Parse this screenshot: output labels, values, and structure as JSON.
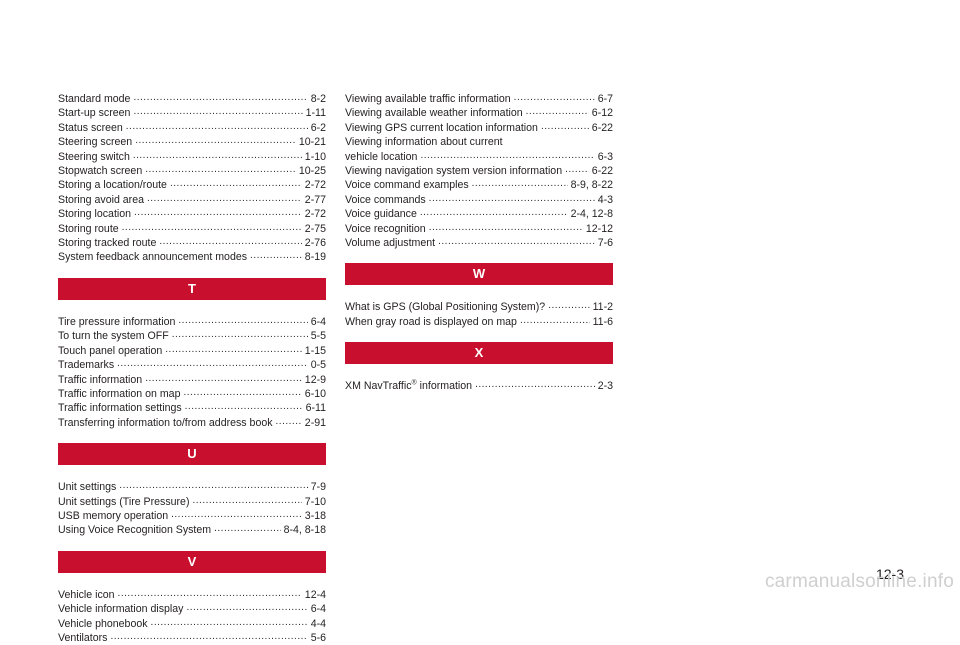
{
  "col1": {
    "s_entries": [
      {
        "term": "Standard mode",
        "page": "8-2"
      },
      {
        "term": "Start-up screen",
        "page": "1-11"
      },
      {
        "term": "Status screen",
        "page": "6-2"
      },
      {
        "term": "Steering screen",
        "page": "10-21"
      },
      {
        "term": "Steering switch",
        "page": "1-10"
      },
      {
        "term": "Stopwatch screen",
        "page": "10-25"
      },
      {
        "term": "Storing a location/route",
        "page": "2-72"
      },
      {
        "term": "Storing avoid area",
        "page": "2-77"
      },
      {
        "term": "Storing location",
        "page": "2-72"
      },
      {
        "term": "Storing route",
        "page": "2-75"
      },
      {
        "term": "Storing tracked route",
        "page": "2-76"
      },
      {
        "term": "System feedback announcement modes",
        "page": "8-19"
      }
    ],
    "t_header": "T",
    "t_entries": [
      {
        "term": "Tire pressure information",
        "page": "6-4"
      },
      {
        "term": "To turn the system OFF",
        "page": "5-5"
      },
      {
        "term": "Touch panel operation",
        "page": "1-15"
      },
      {
        "term": "Trademarks",
        "page": "0-5"
      },
      {
        "term": "Traffic information",
        "page": "12-9"
      },
      {
        "term": "Traffic information on map",
        "page": "6-10"
      },
      {
        "term": "Traffic information settings",
        "page": "6-11"
      },
      {
        "term": "Transferring information to/from address book",
        "page": "2-91"
      }
    ],
    "u_header": "U",
    "u_entries": [
      {
        "term": "Unit settings",
        "page": "7-9"
      },
      {
        "term": "Unit settings (Tire Pressure)",
        "page": "7-10"
      },
      {
        "term": "USB memory operation",
        "page": "3-18"
      },
      {
        "term": "Using Voice Recognition System",
        "page": "8-4, 8-18"
      }
    ],
    "v_header": "V",
    "v_entries": [
      {
        "term": "Vehicle icon",
        "page": "12-4"
      },
      {
        "term": "Vehicle information display",
        "page": "6-4"
      },
      {
        "term": "Vehicle phonebook",
        "page": "4-4"
      },
      {
        "term": "Ventilators",
        "page": "5-6"
      }
    ]
  },
  "col2": {
    "v_entries_a": [
      {
        "term": "Viewing available traffic information",
        "page": "6-7"
      },
      {
        "term": "Viewing available weather information",
        "page": "6-12"
      },
      {
        "term": "Viewing GPS current location information",
        "page": "6-22"
      }
    ],
    "v_multiline_first": "Viewing information about current",
    "v_multiline_second": {
      "term": "vehicle location",
      "page": "6-3"
    },
    "v_entries_b": [
      {
        "term": "Viewing navigation system version information",
        "page": "6-22"
      },
      {
        "term": "Voice command examples",
        "page": "8-9, 8-22"
      },
      {
        "term": "Voice commands",
        "page": "4-3"
      },
      {
        "term": "Voice guidance",
        "page": "2-4, 12-8"
      },
      {
        "term": "Voice recognition",
        "page": "12-12"
      },
      {
        "term": "Volume adjustment",
        "page": "7-6"
      }
    ],
    "w_header": "W",
    "w_entries": [
      {
        "term": "What is GPS (Global Positioning System)?",
        "page": "11-2"
      },
      {
        "term": "When gray road is displayed on map",
        "page": "11-6"
      }
    ],
    "x_header": "X",
    "x_entry": {
      "term_before": "XM NavTraffic",
      "sup": "®",
      "term_after": " information",
      "page": "2-3"
    }
  },
  "footer": {
    "page_number": "12-3",
    "watermark": "carmanualsonline.info"
  },
  "colors": {
    "band": "#c8102e",
    "text": "#231f20"
  }
}
